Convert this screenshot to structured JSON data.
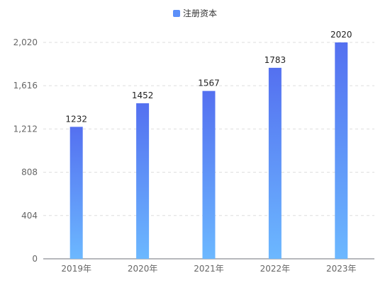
{
  "chart_data": {
    "type": "bar",
    "categories": [
      "2019年",
      "2020年",
      "2021年",
      "2022年",
      "2023年"
    ],
    "series": [
      {
        "name": "注册资本",
        "values": [
          1232,
          1452,
          1567,
          1783,
          2020
        ]
      }
    ],
    "y_ticks": [
      "0",
      "404",
      "808",
      "1,212",
      "1,616",
      "2,020"
    ],
    "ylim": [
      0,
      2020
    ],
    "grid": true,
    "legend": "top-center",
    "colors": {
      "bar_top": "#5470f0",
      "bar_bottom": "#6cb8ff",
      "legend_icon": "#5b8ff9",
      "grid": "#dddddd",
      "axis": "#6e7079"
    }
  }
}
